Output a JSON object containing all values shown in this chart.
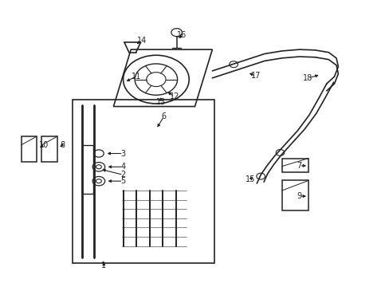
{
  "bg_color": "#ffffff",
  "line_color": "#222222",
  "figsize": [
    4.89,
    3.6
  ],
  "dpi": 100
}
